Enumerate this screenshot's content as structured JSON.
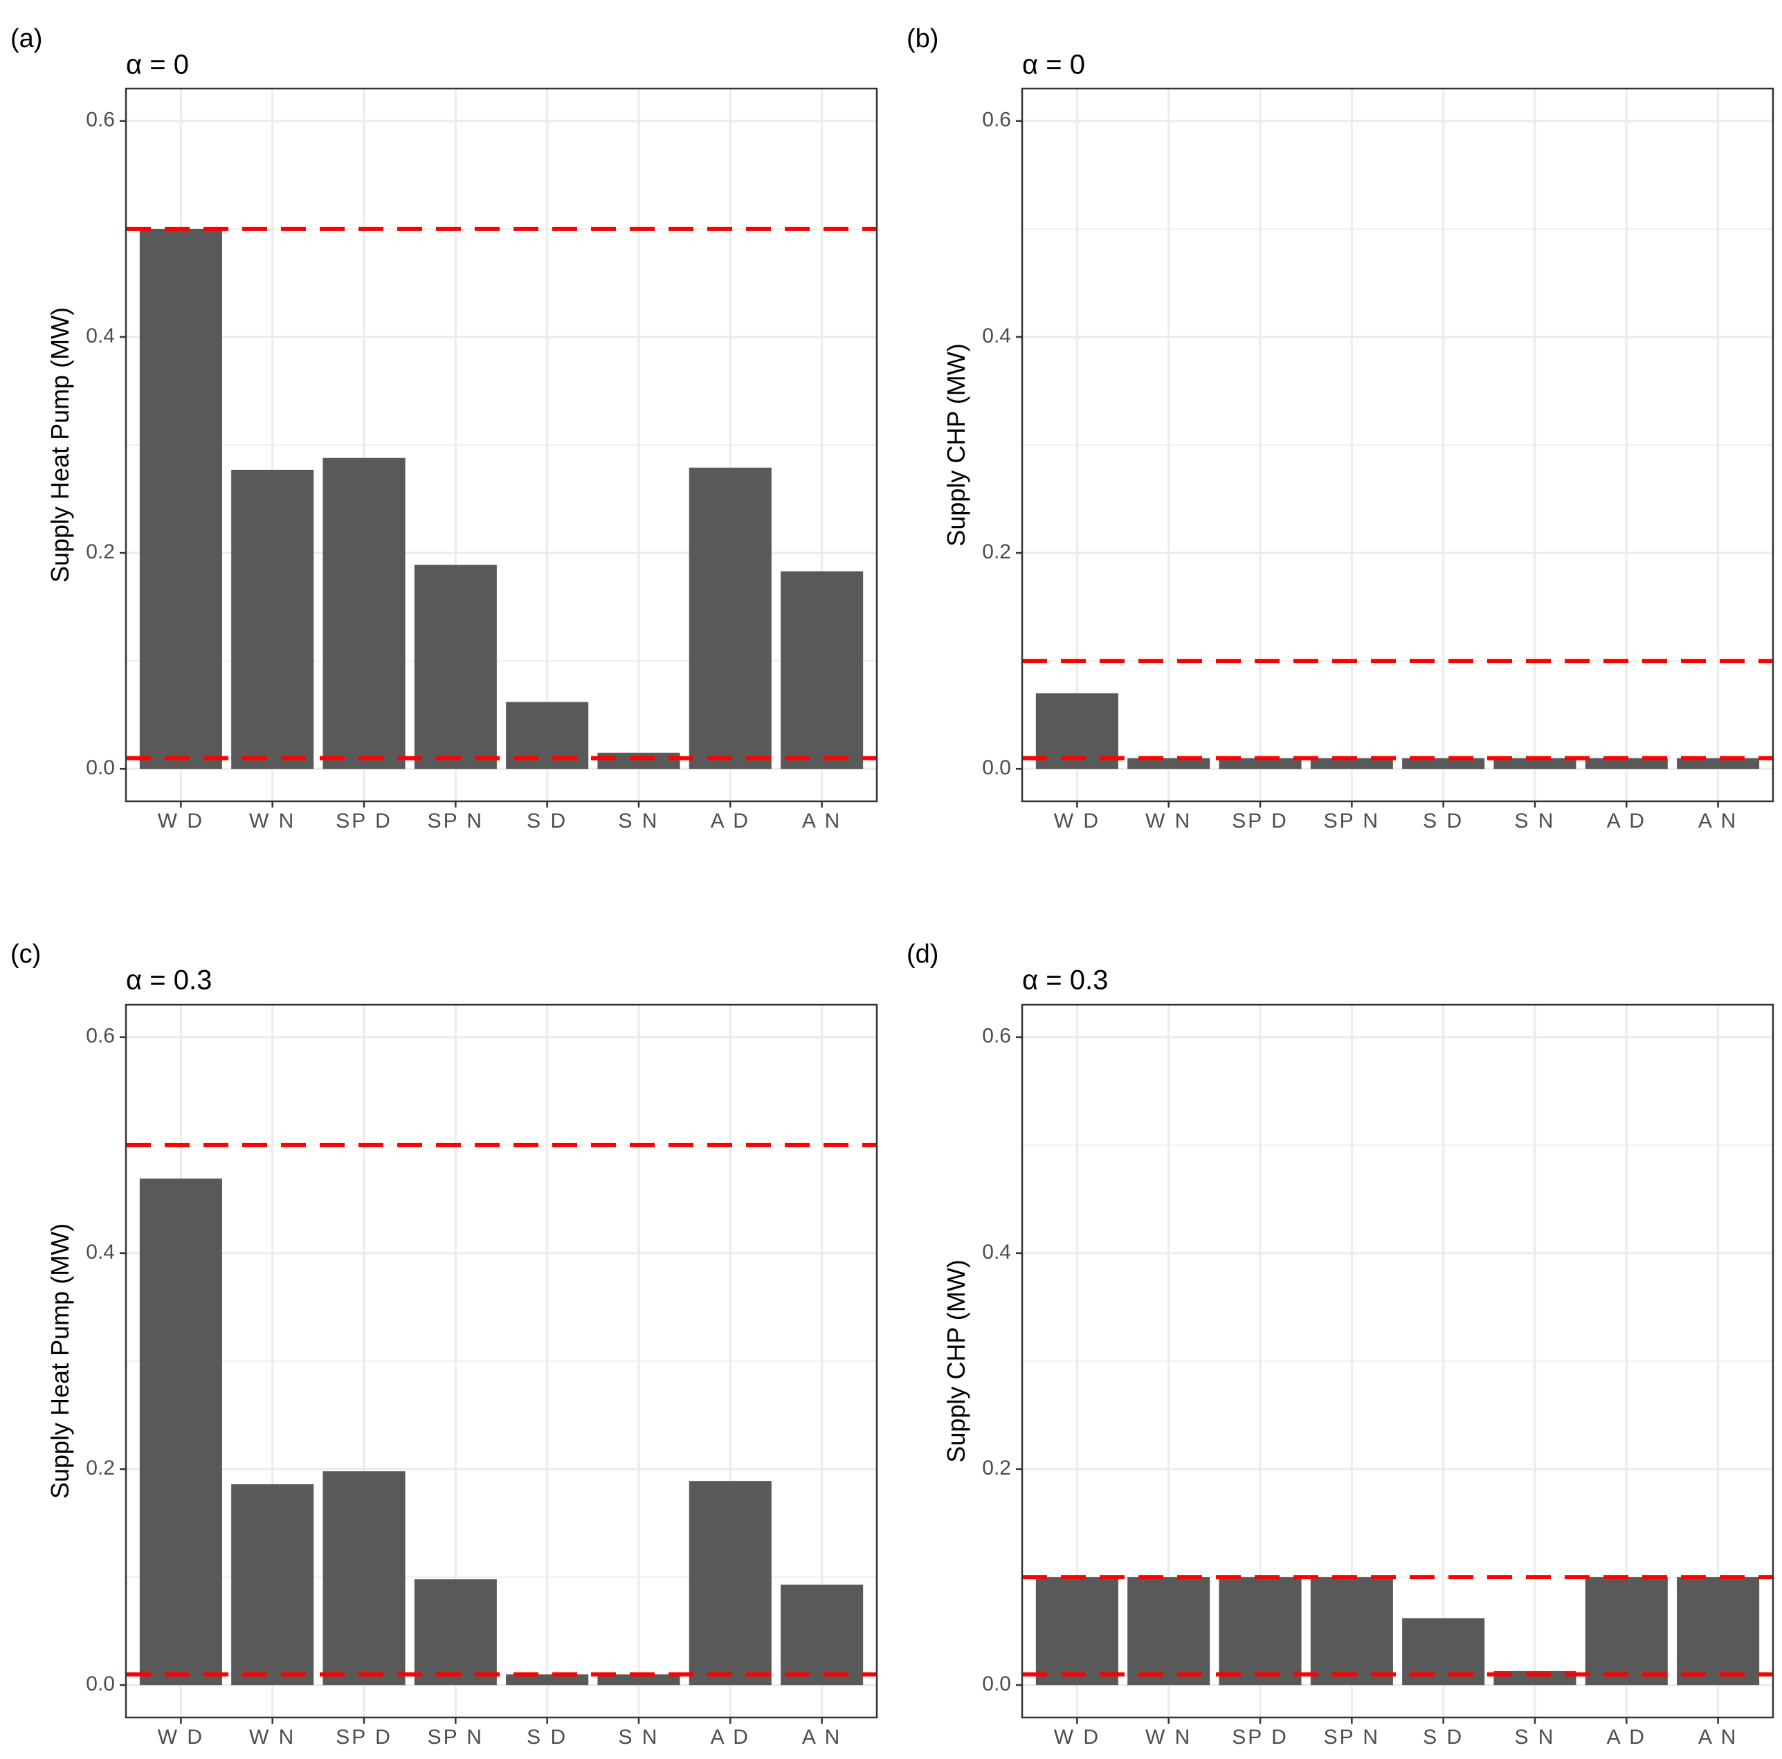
{
  "figure": {
    "panel_labels": [
      "(a)",
      "(b)",
      "(c)",
      "(d)"
    ]
  },
  "colors": {
    "bar": "#595959",
    "reference_line": "#ff0000",
    "grid": "#ebebeb",
    "axis_text": "#4d4d4d",
    "border": "#333333"
  },
  "chart_data": [
    {
      "type": "bar",
      "panel": "(a)",
      "title": "α = 0",
      "xlabel": "",
      "ylabel": "Supply Heat Pump (MW)",
      "categories": [
        "W D",
        "W N",
        "SP D",
        "SP N",
        "S D",
        "S N",
        "A D",
        "A N"
      ],
      "values": [
        0.5,
        0.277,
        0.288,
        0.189,
        0.062,
        0.015,
        0.279,
        0.183
      ],
      "ylim": [
        -0.03,
        0.63
      ],
      "yticks": [
        0.0,
        0.2,
        0.4,
        0.6
      ],
      "ytick_labels": [
        "0.0",
        "0.2",
        "0.4",
        "0.6"
      ],
      "reference_lines": [
        0.5,
        0.01
      ],
      "grid": true
    },
    {
      "type": "bar",
      "panel": "(b)",
      "title": "α = 0",
      "xlabel": "",
      "ylabel": "Supply CHP (MW)",
      "categories": [
        "W D",
        "W N",
        "SP D",
        "SP N",
        "S D",
        "S N",
        "A D",
        "A N"
      ],
      "values": [
        0.07,
        0.01,
        0.01,
        0.01,
        0.01,
        0.01,
        0.01,
        0.01
      ],
      "ylim": [
        -0.03,
        0.63
      ],
      "yticks": [
        0.0,
        0.2,
        0.4,
        0.6
      ],
      "ytick_labels": [
        "0.0",
        "0.2",
        "0.4",
        "0.6"
      ],
      "reference_lines": [
        0.1,
        0.01
      ],
      "grid": true
    },
    {
      "type": "bar",
      "panel": "(c)",
      "title": "α = 0.3",
      "xlabel": "",
      "ylabel": "Supply Heat Pump (MW)",
      "categories": [
        "W D",
        "W N",
        "SP D",
        "SP N",
        "S D",
        "S N",
        "A D",
        "A N"
      ],
      "values": [
        0.469,
        0.186,
        0.198,
        0.098,
        0.01,
        0.01,
        0.189,
        0.093
      ],
      "ylim": [
        -0.03,
        0.63
      ],
      "yticks": [
        0.0,
        0.2,
        0.4,
        0.6
      ],
      "ytick_labels": [
        "0.0",
        "0.2",
        "0.4",
        "0.6"
      ],
      "reference_lines": [
        0.5,
        0.01
      ],
      "grid": true
    },
    {
      "type": "bar",
      "panel": "(d)",
      "title": "α = 0.3",
      "xlabel": "",
      "ylabel": "Supply CHP (MW)",
      "categories": [
        "W D",
        "W N",
        "SP D",
        "SP N",
        "S D",
        "S N",
        "A D",
        "A N"
      ],
      "values": [
        0.1,
        0.1,
        0.1,
        0.1,
        0.062,
        0.013,
        0.1,
        0.1
      ],
      "ylim": [
        -0.03,
        0.63
      ],
      "yticks": [
        0.0,
        0.2,
        0.4,
        0.6
      ],
      "ytick_labels": [
        "0.0",
        "0.2",
        "0.4",
        "0.6"
      ],
      "reference_lines": [
        0.1,
        0.01
      ],
      "grid": true
    }
  ]
}
